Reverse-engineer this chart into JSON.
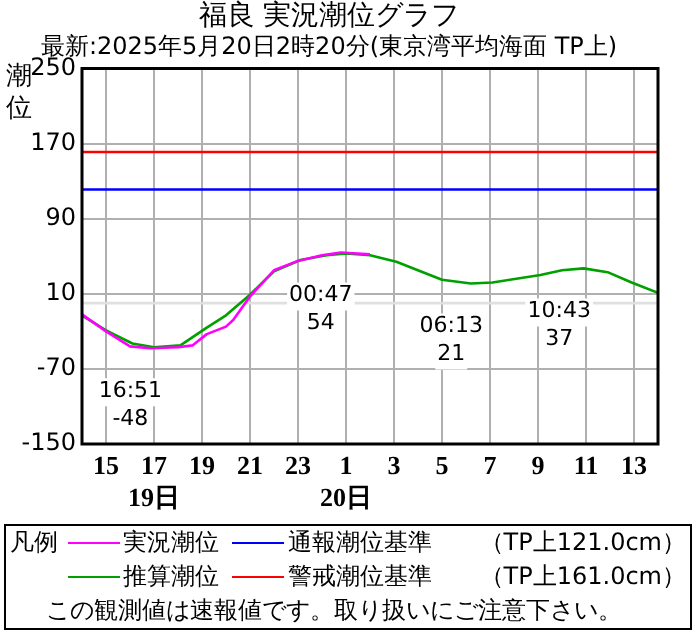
{
  "chart_data": {
    "type": "line",
    "title": "福良 実況潮位グラフ",
    "subtitle": "最新:2025年5月20日2時20分(東京湾平均海面 TP上)",
    "ylabel": "潮位",
    "legend_title": "凡例",
    "legend": "bottom",
    "grid": true,
    "marker": "none",
    "line_style": "solid",
    "xlim": [
      "2025-05-19T14:00",
      "2025-05-20T14:00"
    ],
    "xticks": [
      {
        "value": "2025-05-19T15:00",
        "label": "15"
      },
      {
        "value": "2025-05-19T17:00",
        "label": "17\n19日"
      },
      {
        "value": "2025-05-19T19:00",
        "label": "19"
      },
      {
        "value": "2025-05-19T21:00",
        "label": "21"
      },
      {
        "value": "2025-05-19T23:00",
        "label": "23"
      },
      {
        "value": "2025-05-20T01:00",
        "label": "1\n20日"
      },
      {
        "value": "2025-05-20T03:00",
        "label": "3"
      },
      {
        "value": "2025-05-20T05:00",
        "label": "5"
      },
      {
        "value": "2025-05-20T07:00",
        "label": "7"
      },
      {
        "value": "2025-05-20T09:00",
        "label": "9"
      },
      {
        "value": "2025-05-20T11:00",
        "label": "11"
      },
      {
        "value": "2025-05-20T13:00",
        "label": "13"
      }
    ],
    "ylim": [
      -150,
      250
    ],
    "yticks": [
      -150,
      -70,
      10,
      90,
      170,
      250
    ],
    "series": [
      {
        "name": "実況潮位",
        "color": "#ff00ff",
        "x": [
          "2025-05-19T14:00",
          "2025-05-19T15:00",
          "2025-05-19T16:00",
          "2025-05-19T16:51",
          "2025-05-19T18:00",
          "2025-05-19T18:36",
          "2025-05-19T19:12",
          "2025-05-19T20:00",
          "2025-05-19T20:18",
          "2025-05-19T21:00",
          "2025-05-19T22:00",
          "2025-05-19T23:00",
          "2025-05-20T00:00",
          "2025-05-20T00:47",
          "2025-05-20T02:00"
        ],
        "values": [
          -12,
          -30,
          -46,
          -48,
          -47,
          -45,
          -33,
          -25,
          -18,
          7,
          35,
          45,
          51,
          54,
          52
        ]
      },
      {
        "name": "推算潮位",
        "color": "#00a000",
        "x": [
          "2025-05-19T14:00",
          "2025-05-19T15:00",
          "2025-05-19T16:06",
          "2025-05-19T17:00",
          "2025-05-19T18:06",
          "2025-05-19T19:12",
          "2025-05-19T20:00",
          "2025-05-19T21:00",
          "2025-05-19T22:00",
          "2025-05-19T23:06",
          "2025-05-20T00:12",
          "2025-05-20T01:00",
          "2025-05-20T02:00",
          "2025-05-20T03:06",
          "2025-05-20T04:06",
          "2025-05-20T05:00",
          "2025-05-20T06:12",
          "2025-05-20T07:06",
          "2025-05-20T08:06",
          "2025-05-20T09:06",
          "2025-05-20T10:00",
          "2025-05-20T10:54",
          "2025-05-20T11:54",
          "2025-05-20T12:54",
          "2025-05-20T14:00"
        ],
        "values": [
          -13,
          -29,
          -43,
          -47,
          -45,
          -26,
          -13,
          9,
          34,
          46,
          51,
          53,
          51,
          44,
          34,
          25,
          21,
          22,
          26,
          30,
          35,
          37,
          33,
          22,
          11
        ]
      }
    ],
    "ref_lines": [
      {
        "axis": "y",
        "value": 0,
        "color": "#e0e0e0"
      },
      {
        "axis": "y",
        "value": 121,
        "color": "#0000ff",
        "label": "通報潮位基準　　（TP上121.0cm）"
      },
      {
        "axis": "y",
        "value": 161,
        "color": "#ff0000",
        "label": "警戒潮位基準　　（TP上161.0cm）"
      }
    ],
    "annotations": [
      {
        "text": "16:51\n-48",
        "x": "2025-05-19T16:51",
        "y": -48
      },
      {
        "text": "00:47\n54",
        "x": "2025-05-20T00:47",
        "y": 54
      },
      {
        "text": "06:13\n21",
        "x": "2025-05-20T06:13",
        "y": 21
      },
      {
        "text": "10:43\n37",
        "x": "2025-05-20T10:43",
        "y": 37
      },
      "この観測値は速報値です。取り扱いにご注意下さい。"
    ]
  }
}
